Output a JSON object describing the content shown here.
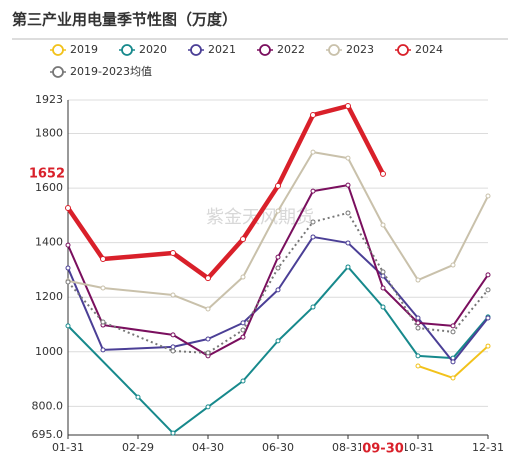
{
  "chart_data": {
    "type": "line",
    "title": "第三产业用电量季节性图（万度）",
    "watermark": "紫金天风期货",
    "categories": [
      "01-31",
      null,
      "02-29",
      null,
      "04-30",
      null,
      "06-30",
      null,
      "08-31",
      "09-30",
      "10-31",
      null,
      "12-31"
    ],
    "highlight_category": 9,
    "crosshair_value": 1652,
    "connect_nulls": true,
    "ylim": [
      695,
      1923
    ],
    "yticks": [
      {
        "value": 695,
        "label": "695.0"
      },
      {
        "value": 800,
        "label": "800.0"
      },
      1000,
      1200,
      1400,
      1600,
      1800,
      1923
    ],
    "grid": true,
    "legend": "top",
    "series": [
      {
        "name": "2019",
        "color": "#f2c21b",
        "width": 2,
        "values": [
          null,
          null,
          null,
          null,
          null,
          null,
          null,
          null,
          null,
          null,
          948,
          904,
          1021
        ]
      },
      {
        "name": "2020",
        "color": "#17898c",
        "width": 2,
        "values": [
          1095,
          null,
          834,
          702,
          798,
          893,
          1040,
          1164,
          1311,
          1164,
          985,
          977,
          1128
        ]
      },
      {
        "name": "2021",
        "color": "#4b3f96",
        "width": 2,
        "values": [
          1307,
          1007,
          null,
          1018,
          1047,
          1106,
          1227,
          1421,
          1399,
          1278,
          1124,
          963,
          1124
        ]
      },
      {
        "name": "2022",
        "color": "#7a0f5e",
        "width": 2,
        "values": [
          1391,
          1098,
          null,
          1062,
          985,
          1054,
          1347,
          1589,
          1611,
          1234,
          1106,
          1095,
          1282
        ]
      },
      {
        "name": "2023",
        "color": "#c9c1ab",
        "width": 2,
        "values": [
          1260,
          1234,
          null,
          1208,
          1157,
          1274,
          1516,
          1732,
          1710,
          1465,
          1263,
          1318,
          1571
        ]
      },
      {
        "name": "2024",
        "color": "#d9202a",
        "width": 4.5,
        "values": [
          1527,
          1340,
          null,
          1362,
          1270,
          1413,
          1608,
          1868,
          1901,
          1652,
          null,
          null,
          null
        ]
      },
      {
        "name": "2019-2023均值",
        "color": "#777777",
        "width": 2,
        "dash": true,
        "values": [
          1256,
          1109,
          null,
          1003,
          996,
          1080,
          1307,
          1476,
          1509,
          1293,
          1087,
          1073,
          1227
        ]
      }
    ]
  }
}
